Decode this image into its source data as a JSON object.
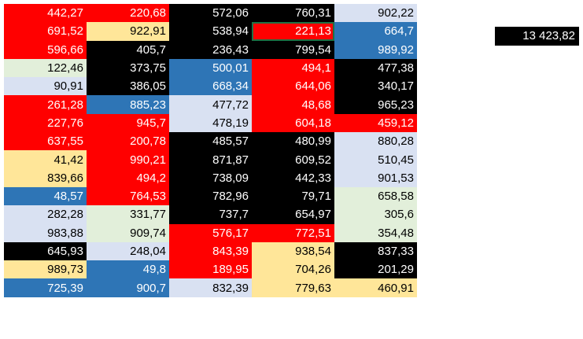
{
  "colors": {
    "red": "#ff0000",
    "black": "#000000",
    "blue": "#2e75b6",
    "lightblue": "#d9e1f2",
    "yellow": "#ffe699",
    "green": "#e2efda",
    "dark_text": "#000000",
    "light_text": "#ffffff",
    "selection_border": "#1e7145"
  },
  "selected_cell": {
    "row": 1,
    "col": 3
  },
  "grid": {
    "rows": [
      [
        {
          "v": "442,27",
          "c": "red"
        },
        {
          "v": "220,68",
          "c": "red"
        },
        {
          "v": "572,06",
          "c": "black"
        },
        {
          "v": "760,31",
          "c": "black"
        },
        {
          "v": "902,22",
          "c": "lightblue"
        }
      ],
      [
        {
          "v": "691,52",
          "c": "red"
        },
        {
          "v": "922,91",
          "c": "yellow"
        },
        {
          "v": "538,94",
          "c": "black"
        },
        {
          "v": "221,13",
          "c": "red"
        },
        {
          "v": "664,7",
          "c": "blue"
        }
      ],
      [
        {
          "v": "596,66",
          "c": "red"
        },
        {
          "v": "405,7",
          "c": "black"
        },
        {
          "v": "236,43",
          "c": "black"
        },
        {
          "v": "799,54",
          "c": "black"
        },
        {
          "v": "989,92",
          "c": "blue"
        }
      ],
      [
        {
          "v": "122,46",
          "c": "green"
        },
        {
          "v": "373,75",
          "c": "black"
        },
        {
          "v": "500,01",
          "c": "blue"
        },
        {
          "v": "494,1",
          "c": "red"
        },
        {
          "v": "477,38",
          "c": "black"
        }
      ],
      [
        {
          "v": "90,91",
          "c": "lightblue"
        },
        {
          "v": "386,05",
          "c": "black"
        },
        {
          "v": "668,34",
          "c": "blue"
        },
        {
          "v": "644,06",
          "c": "red"
        },
        {
          "v": "340,17",
          "c": "black"
        }
      ],
      [
        {
          "v": "261,28",
          "c": "red"
        },
        {
          "v": "885,23",
          "c": "blue"
        },
        {
          "v": "477,72",
          "c": "lightblue"
        },
        {
          "v": "48,68",
          "c": "red"
        },
        {
          "v": "965,23",
          "c": "black"
        }
      ],
      [
        {
          "v": "227,76",
          "c": "red"
        },
        {
          "v": "945,7",
          "c": "red"
        },
        {
          "v": "478,19",
          "c": "lightblue"
        },
        {
          "v": "604,18",
          "c": "red"
        },
        {
          "v": "459,12",
          "c": "red"
        }
      ],
      [
        {
          "v": "637,55",
          "c": "red"
        },
        {
          "v": "200,78",
          "c": "red"
        },
        {
          "v": "485,57",
          "c": "black"
        },
        {
          "v": "480,99",
          "c": "black"
        },
        {
          "v": "880,28",
          "c": "lightblue"
        }
      ],
      [
        {
          "v": "41,42",
          "c": "yellow"
        },
        {
          "v": "990,21",
          "c": "red"
        },
        {
          "v": "871,87",
          "c": "black"
        },
        {
          "v": "609,52",
          "c": "black"
        },
        {
          "v": "510,45",
          "c": "lightblue"
        }
      ],
      [
        {
          "v": "839,66",
          "c": "yellow"
        },
        {
          "v": "494,2",
          "c": "red"
        },
        {
          "v": "738,09",
          "c": "black"
        },
        {
          "v": "442,33",
          "c": "black"
        },
        {
          "v": "901,53",
          "c": "lightblue"
        }
      ],
      [
        {
          "v": "48,57",
          "c": "blue"
        },
        {
          "v": "764,53",
          "c": "red"
        },
        {
          "v": "782,96",
          "c": "black"
        },
        {
          "v": "79,71",
          "c": "black"
        },
        {
          "v": "658,58",
          "c": "green"
        }
      ],
      [
        {
          "v": "282,28",
          "c": "lightblue"
        },
        {
          "v": "331,77",
          "c": "green"
        },
        {
          "v": "737,7",
          "c": "black"
        },
        {
          "v": "654,97",
          "c": "black"
        },
        {
          "v": "305,6",
          "c": "green"
        }
      ],
      [
        {
          "v": "983,88",
          "c": "lightblue"
        },
        {
          "v": "909,74",
          "c": "green"
        },
        {
          "v": "576,17",
          "c": "red"
        },
        {
          "v": "772,51",
          "c": "red"
        },
        {
          "v": "354,48",
          "c": "green"
        }
      ],
      [
        {
          "v": "645,93",
          "c": "black"
        },
        {
          "v": "248,04",
          "c": "lightblue"
        },
        {
          "v": "843,39",
          "c": "red"
        },
        {
          "v": "938,54",
          "c": "yellow"
        },
        {
          "v": "837,33",
          "c": "black"
        }
      ],
      [
        {
          "v": "989,73",
          "c": "yellow"
        },
        {
          "v": "49,8",
          "c": "blue"
        },
        {
          "v": "189,95",
          "c": "red"
        },
        {
          "v": "704,26",
          "c": "yellow"
        },
        {
          "v": "201,29",
          "c": "black"
        }
      ],
      [
        {
          "v": "725,39",
          "c": "blue"
        },
        {
          "v": "900,7",
          "c": "blue"
        },
        {
          "v": "832,39",
          "c": "lightblue"
        },
        {
          "v": "779,63",
          "c": "yellow"
        },
        {
          "v": "460,91",
          "c": "yellow"
        }
      ]
    ]
  },
  "total": {
    "value": "13 423,82",
    "c": "black"
  }
}
